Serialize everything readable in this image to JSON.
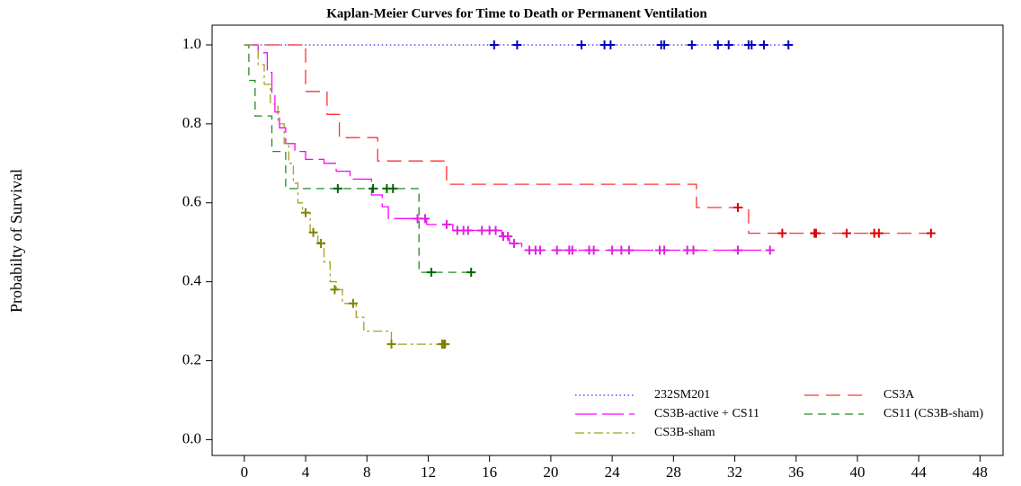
{
  "chart_data": {
    "type": "step",
    "title": "Kaplan-Meier Curves for Time to Death or Permanent Ventilation",
    "y_label": "Probabilty of Survival",
    "xlim": [
      -2.1,
      49.5
    ],
    "ylim": [
      -0.04,
      1.05
    ],
    "xticks": [
      0,
      4,
      8,
      12,
      16,
      20,
      24,
      28,
      32,
      36,
      40,
      44,
      48
    ],
    "yticks": [
      {
        "value": 0,
        "label": "0.0"
      },
      0.2,
      0.4,
      0.6,
      0.8,
      {
        "value": 1,
        "label": "1.0"
      }
    ],
    "grid": false,
    "legend": "lower right",
    "series": [
      {
        "name": "232SM201",
        "color": "#2a2aff",
        "mark_color": "#0000c0",
        "dash": "dotted",
        "x": [
          0,
          35.5
        ],
        "values": [
          1,
          1
        ],
        "censor_x": [
          16.3,
          17.8,
          22.0,
          23.5,
          23.9,
          27.2,
          27.4,
          29.2,
          30.9,
          31.6,
          32.9,
          33.1,
          33.9,
          35.5
        ],
        "censor_values": [
          1,
          1,
          1,
          1,
          1,
          1,
          1,
          1,
          1,
          1,
          1,
          1,
          1,
          1
        ]
      },
      {
        "name": "CS3A",
        "color": "#ff3030",
        "mark_color": "#e00000",
        "dash": "long-dash",
        "x": [
          0,
          4.0,
          4.0,
          5.4,
          5.4,
          6.2,
          6.2,
          8.7,
          8.7,
          13.2,
          13.2,
          29.5,
          29.5,
          32.9,
          32.9,
          45.0
        ],
        "values": [
          1,
          1,
          0.882,
          0.882,
          0.824,
          0.824,
          0.765,
          0.765,
          0.706,
          0.706,
          0.647,
          0.647,
          0.588,
          0.588,
          0.523,
          0.523
        ],
        "censor_x": [
          32.2,
          35.1,
          37.2,
          37.3,
          39.3,
          41.1,
          41.4,
          44.8
        ],
        "censor_values": [
          0.588,
          0.523,
          0.523,
          0.523,
          0.523,
          0.523,
          0.523,
          0.523
        ]
      },
      {
        "name": "CS3B-active + CS11",
        "color": "#ff00ff",
        "mark_color": "#e020e0",
        "dash": "longer-dash",
        "x": [
          0,
          0.9,
          0.9,
          1.5,
          1.5,
          1.8,
          1.8,
          2.0,
          2.0,
          2.3,
          2.3,
          2.7,
          2.7,
          3.3,
          3.3,
          4.0,
          4.0,
          5.2,
          5.2,
          6.0,
          6.0,
          6.9,
          6.9,
          8.3,
          8.3,
          9.0,
          9.0,
          9.4,
          9.4,
          11.9,
          11.9,
          13.6,
          13.6,
          16.8,
          16.8,
          17.3,
          17.3,
          18.1,
          18.1,
          34.4
        ],
        "values": [
          1,
          1,
          0.98,
          0.98,
          0.93,
          0.93,
          0.88,
          0.88,
          0.83,
          0.83,
          0.79,
          0.79,
          0.75,
          0.75,
          0.73,
          0.73,
          0.71,
          0.71,
          0.7,
          0.7,
          0.68,
          0.68,
          0.66,
          0.66,
          0.62,
          0.62,
          0.59,
          0.59,
          0.56,
          0.56,
          0.545,
          0.545,
          0.53,
          0.53,
          0.515,
          0.515,
          0.497,
          0.497,
          0.48,
          0.48
        ],
        "censor_x": [
          11.3,
          11.8,
          13.2,
          13.9,
          14.3,
          14.6,
          15.5,
          16.0,
          16.4,
          16.9,
          17.2,
          17.6,
          18.6,
          19.0,
          19.3,
          20.4,
          21.2,
          21.4,
          22.5,
          22.8,
          24.0,
          24.6,
          25.1,
          27.1,
          27.4,
          28.9,
          29.3,
          32.2,
          34.3
        ],
        "censor_values": [
          0.56,
          0.56,
          0.545,
          0.53,
          0.53,
          0.53,
          0.53,
          0.53,
          0.53,
          0.515,
          0.515,
          0.497,
          0.48,
          0.48,
          0.48,
          0.48,
          0.48,
          0.48,
          0.48,
          0.48,
          0.48,
          0.48,
          0.48,
          0.48,
          0.48,
          0.48,
          0.48,
          0.48,
          0.48
        ]
      },
      {
        "name": "CS11 (CS3B-sham)",
        "color": "#228b22",
        "mark_color": "#006400",
        "dash": "dashed",
        "x": [
          0,
          0.3,
          0.3,
          0.7,
          0.7,
          1.8,
          1.8,
          2.7,
          2.7,
          11.4,
          11.4,
          14.8
        ],
        "values": [
          1,
          1,
          0.91,
          0.91,
          0.82,
          0.82,
          0.73,
          0.73,
          0.636,
          0.636,
          0.424,
          0.424
        ],
        "censor_x": [
          6.1,
          8.4,
          9.3,
          9.7,
          12.2,
          14.8
        ],
        "censor_values": [
          0.636,
          0.636,
          0.636,
          0.636,
          0.424,
          0.424
        ]
      },
      {
        "name": "CS3B-sham",
        "color": "#a0a020",
        "mark_color": "#808000",
        "dash": "dash-dot",
        "x": [
          0,
          0.9,
          0.9,
          1.3,
          1.3,
          1.7,
          1.7,
          2.2,
          2.2,
          2.6,
          2.6,
          2.9,
          2.9,
          3.2,
          3.2,
          3.5,
          3.5,
          3.8,
          3.8,
          4.3,
          4.3,
          4.8,
          4.8,
          5.2,
          5.2,
          5.6,
          5.6,
          6.0,
          6.0,
          6.4,
          6.4,
          7.3,
          7.3,
          7.8,
          7.8,
          9.6,
          9.6,
          13.2
        ],
        "values": [
          1,
          1,
          0.95,
          0.95,
          0.9,
          0.9,
          0.85,
          0.85,
          0.8,
          0.8,
          0.75,
          0.75,
          0.7,
          0.7,
          0.65,
          0.65,
          0.6,
          0.6,
          0.575,
          0.575,
          0.525,
          0.525,
          0.5,
          0.5,
          0.45,
          0.45,
          0.4,
          0.4,
          0.38,
          0.38,
          0.345,
          0.345,
          0.31,
          0.31,
          0.275,
          0.275,
          0.242,
          0.242
        ],
        "censor_x": [
          4.0,
          4.5,
          5.0,
          5.9,
          7.1,
          9.6,
          12.9,
          13.0,
          13.1
        ],
        "censor_values": [
          0.575,
          0.525,
          0.497,
          0.38,
          0.345,
          0.242,
          0.242,
          0.242,
          0.242
        ]
      }
    ]
  }
}
